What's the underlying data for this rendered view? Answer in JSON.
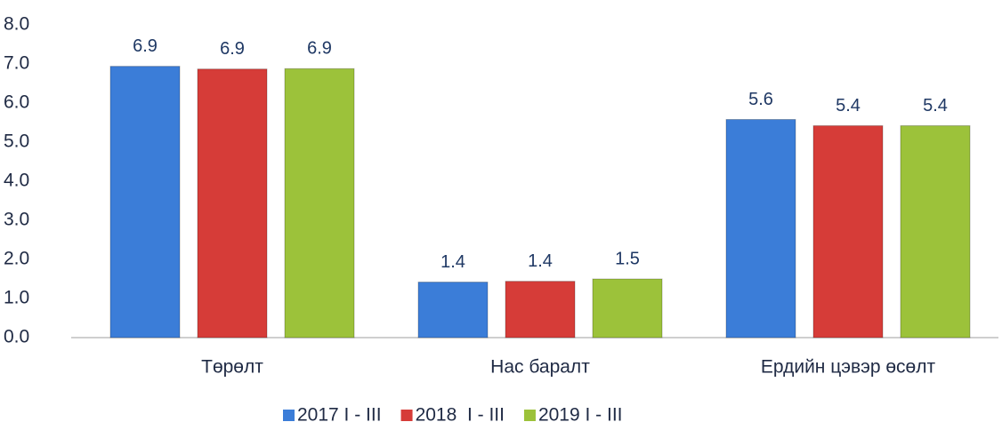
{
  "chart_data": {
    "type": "bar",
    "categories": [
      "Төрөлт",
      "Нас баралт",
      "Ердийн цэвэр өсөлт"
    ],
    "series": [
      {
        "name": "2017 I - III",
        "color": "#3b7dd8",
        "values": [
          6.94,
          1.42,
          5.58
        ],
        "value_labels": [
          "6.9",
          "1.4",
          "5.6"
        ]
      },
      {
        "name": "2018  I - III",
        "color": "#d63c38",
        "values": [
          6.87,
          1.44,
          5.42
        ],
        "value_labels": [
          "6.9",
          "1.4",
          "5.4"
        ]
      },
      {
        "name": "2019 I - III",
        "color": "#9cc23a",
        "values": [
          6.88,
          1.5,
          5.42
        ],
        "value_labels": [
          "6.9",
          "1.5",
          "5.4"
        ]
      }
    ],
    "ylim": [
      0,
      8
    ],
    "yticks": [
      {
        "value": 0,
        "label": "0.0"
      },
      {
        "value": 1,
        "label": "1.0"
      },
      {
        "value": 2,
        "label": "2.0"
      },
      {
        "value": 3,
        "label": "3.0"
      },
      {
        "value": 4,
        "label": "4.0"
      },
      {
        "value": 5,
        "label": "5.0"
      },
      {
        "value": 6,
        "label": "6.0"
      },
      {
        "value": 7,
        "label": "7.0"
      },
      {
        "value": 8,
        "label": "8.0"
      }
    ],
    "grid": false,
    "legend": "bottom"
  }
}
